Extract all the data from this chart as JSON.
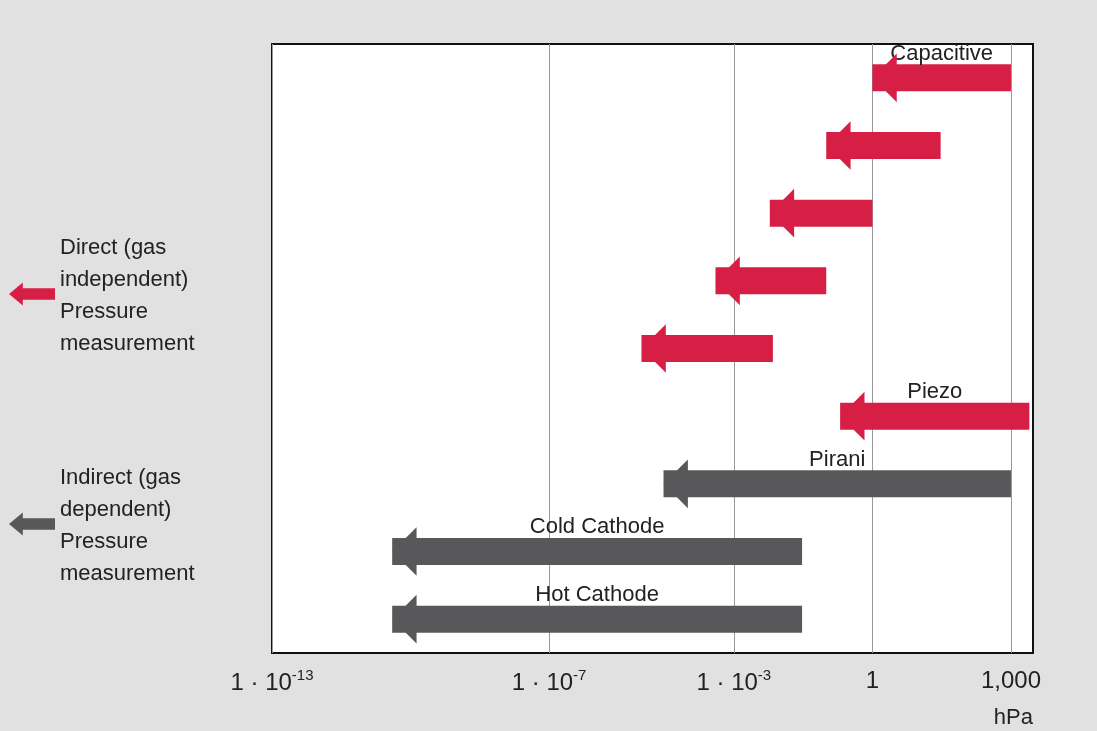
{
  "chart_data": {
    "type": "bar",
    "orientation": "horizontal",
    "xlabel": "hPa",
    "log": "x",
    "categories": [
      "Capacitive",
      null,
      null,
      null,
      null,
      "Piezo",
      "Pirani",
      "Cold Cathode",
      "Hot Cathode"
    ],
    "series": [
      {
        "name": "Direct (gas independent) Pressure measurement",
        "color": "#d71f46",
        "base": [
          1,
          0.1,
          0.006,
          0.0004,
          1e-05,
          0.2,
          null,
          null,
          null
        ],
        "values": [
          999,
          29.9,
          0.994,
          0.0996,
          0.00699,
          2499.8,
          null,
          null,
          null
        ]
      },
      {
        "name": "Indirect (gas dependent) Pressure measurement",
        "color": "#58585a",
        "base": [
          null,
          null,
          null,
          null,
          null,
          null,
          3e-05,
          4e-11,
          4e-11
        ],
        "values": [
          null,
          null,
          null,
          null,
          null,
          null,
          999.99997,
          0.03,
          0.03
        ]
      }
    ],
    "xlim": [
      1e-13,
      3000
    ],
    "xticks": [
      {
        "value": 1e-13,
        "label": "1 · 10$^{-13}$"
      },
      {
        "value": 1e-07,
        "label": "1 · 10$^{-7}$"
      },
      {
        "value": 0.001,
        "label": "1 · 10$^{-3}$"
      },
      1,
      {
        "value": 1000,
        "label": "1,000"
      }
    ],
    "grid": "x",
    "legend": "left",
    "tick_labels": "x"
  }
}
